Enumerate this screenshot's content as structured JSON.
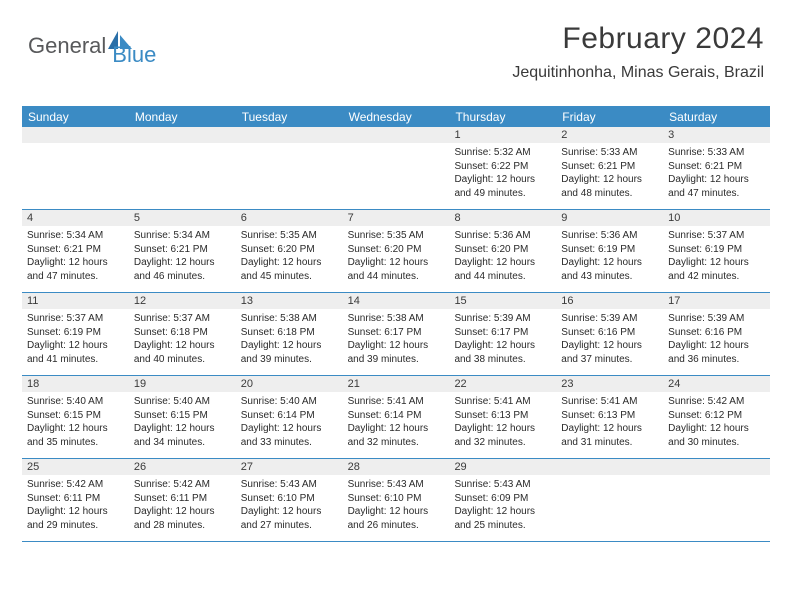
{
  "logo": {
    "text1": "General",
    "text2": "Blue"
  },
  "header": {
    "month_title": "February 2024",
    "location": "Jequitinhonha, Minas Gerais, Brazil"
  },
  "colors": {
    "header_bg": "#3b8bc4",
    "header_fg": "#ffffff",
    "daynum_bg": "#eeeeee",
    "border": "#3b8bc4",
    "text": "#2a2a2a",
    "logo_gray": "#58595b",
    "logo_blue": "#3b8bc4"
  },
  "fonts": {
    "month_title_pt": 30,
    "location_pt": 16,
    "day_header_pt": 12,
    "day_number_pt": 11,
    "cell_text_pt": 10
  },
  "day_names": [
    "Sunday",
    "Monday",
    "Tuesday",
    "Wednesday",
    "Thursday",
    "Friday",
    "Saturday"
  ],
  "weeks": [
    [
      {
        "n": "",
        "sunrise": "",
        "sunset": "",
        "daylight": ""
      },
      {
        "n": "",
        "sunrise": "",
        "sunset": "",
        "daylight": ""
      },
      {
        "n": "",
        "sunrise": "",
        "sunset": "",
        "daylight": ""
      },
      {
        "n": "",
        "sunrise": "",
        "sunset": "",
        "daylight": ""
      },
      {
        "n": "1",
        "sunrise": "Sunrise: 5:32 AM",
        "sunset": "Sunset: 6:22 PM",
        "daylight": "Daylight: 12 hours and 49 minutes."
      },
      {
        "n": "2",
        "sunrise": "Sunrise: 5:33 AM",
        "sunset": "Sunset: 6:21 PM",
        "daylight": "Daylight: 12 hours and 48 minutes."
      },
      {
        "n": "3",
        "sunrise": "Sunrise: 5:33 AM",
        "sunset": "Sunset: 6:21 PM",
        "daylight": "Daylight: 12 hours and 47 minutes."
      }
    ],
    [
      {
        "n": "4",
        "sunrise": "Sunrise: 5:34 AM",
        "sunset": "Sunset: 6:21 PM",
        "daylight": "Daylight: 12 hours and 47 minutes."
      },
      {
        "n": "5",
        "sunrise": "Sunrise: 5:34 AM",
        "sunset": "Sunset: 6:21 PM",
        "daylight": "Daylight: 12 hours and 46 minutes."
      },
      {
        "n": "6",
        "sunrise": "Sunrise: 5:35 AM",
        "sunset": "Sunset: 6:20 PM",
        "daylight": "Daylight: 12 hours and 45 minutes."
      },
      {
        "n": "7",
        "sunrise": "Sunrise: 5:35 AM",
        "sunset": "Sunset: 6:20 PM",
        "daylight": "Daylight: 12 hours and 44 minutes."
      },
      {
        "n": "8",
        "sunrise": "Sunrise: 5:36 AM",
        "sunset": "Sunset: 6:20 PM",
        "daylight": "Daylight: 12 hours and 44 minutes."
      },
      {
        "n": "9",
        "sunrise": "Sunrise: 5:36 AM",
        "sunset": "Sunset: 6:19 PM",
        "daylight": "Daylight: 12 hours and 43 minutes."
      },
      {
        "n": "10",
        "sunrise": "Sunrise: 5:37 AM",
        "sunset": "Sunset: 6:19 PM",
        "daylight": "Daylight: 12 hours and 42 minutes."
      }
    ],
    [
      {
        "n": "11",
        "sunrise": "Sunrise: 5:37 AM",
        "sunset": "Sunset: 6:19 PM",
        "daylight": "Daylight: 12 hours and 41 minutes."
      },
      {
        "n": "12",
        "sunrise": "Sunrise: 5:37 AM",
        "sunset": "Sunset: 6:18 PM",
        "daylight": "Daylight: 12 hours and 40 minutes."
      },
      {
        "n": "13",
        "sunrise": "Sunrise: 5:38 AM",
        "sunset": "Sunset: 6:18 PM",
        "daylight": "Daylight: 12 hours and 39 minutes."
      },
      {
        "n": "14",
        "sunrise": "Sunrise: 5:38 AM",
        "sunset": "Sunset: 6:17 PM",
        "daylight": "Daylight: 12 hours and 39 minutes."
      },
      {
        "n": "15",
        "sunrise": "Sunrise: 5:39 AM",
        "sunset": "Sunset: 6:17 PM",
        "daylight": "Daylight: 12 hours and 38 minutes."
      },
      {
        "n": "16",
        "sunrise": "Sunrise: 5:39 AM",
        "sunset": "Sunset: 6:16 PM",
        "daylight": "Daylight: 12 hours and 37 minutes."
      },
      {
        "n": "17",
        "sunrise": "Sunrise: 5:39 AM",
        "sunset": "Sunset: 6:16 PM",
        "daylight": "Daylight: 12 hours and 36 minutes."
      }
    ],
    [
      {
        "n": "18",
        "sunrise": "Sunrise: 5:40 AM",
        "sunset": "Sunset: 6:15 PM",
        "daylight": "Daylight: 12 hours and 35 minutes."
      },
      {
        "n": "19",
        "sunrise": "Sunrise: 5:40 AM",
        "sunset": "Sunset: 6:15 PM",
        "daylight": "Daylight: 12 hours and 34 minutes."
      },
      {
        "n": "20",
        "sunrise": "Sunrise: 5:40 AM",
        "sunset": "Sunset: 6:14 PM",
        "daylight": "Daylight: 12 hours and 33 minutes."
      },
      {
        "n": "21",
        "sunrise": "Sunrise: 5:41 AM",
        "sunset": "Sunset: 6:14 PM",
        "daylight": "Daylight: 12 hours and 32 minutes."
      },
      {
        "n": "22",
        "sunrise": "Sunrise: 5:41 AM",
        "sunset": "Sunset: 6:13 PM",
        "daylight": "Daylight: 12 hours and 32 minutes."
      },
      {
        "n": "23",
        "sunrise": "Sunrise: 5:41 AM",
        "sunset": "Sunset: 6:13 PM",
        "daylight": "Daylight: 12 hours and 31 minutes."
      },
      {
        "n": "24",
        "sunrise": "Sunrise: 5:42 AM",
        "sunset": "Sunset: 6:12 PM",
        "daylight": "Daylight: 12 hours and 30 minutes."
      }
    ],
    [
      {
        "n": "25",
        "sunrise": "Sunrise: 5:42 AM",
        "sunset": "Sunset: 6:11 PM",
        "daylight": "Daylight: 12 hours and 29 minutes."
      },
      {
        "n": "26",
        "sunrise": "Sunrise: 5:42 AM",
        "sunset": "Sunset: 6:11 PM",
        "daylight": "Daylight: 12 hours and 28 minutes."
      },
      {
        "n": "27",
        "sunrise": "Sunrise: 5:43 AM",
        "sunset": "Sunset: 6:10 PM",
        "daylight": "Daylight: 12 hours and 27 minutes."
      },
      {
        "n": "28",
        "sunrise": "Sunrise: 5:43 AM",
        "sunset": "Sunset: 6:10 PM",
        "daylight": "Daylight: 12 hours and 26 minutes."
      },
      {
        "n": "29",
        "sunrise": "Sunrise: 5:43 AM",
        "sunset": "Sunset: 6:09 PM",
        "daylight": "Daylight: 12 hours and 25 minutes."
      },
      {
        "n": "",
        "sunrise": "",
        "sunset": "",
        "daylight": ""
      },
      {
        "n": "",
        "sunrise": "",
        "sunset": "",
        "daylight": ""
      }
    ]
  ]
}
